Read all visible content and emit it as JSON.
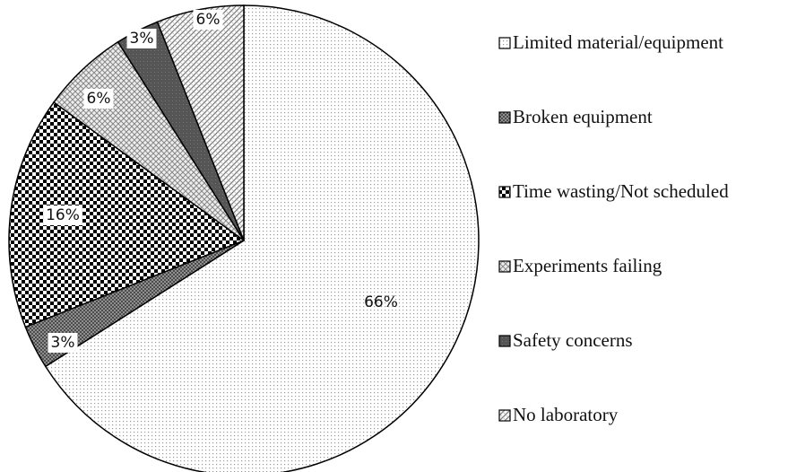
{
  "chart_data": {
    "type": "pie",
    "categories": [
      "Limited material/equipment",
      "Broken equipment",
      "Time wasting/Not scheduled",
      "Experiments failing",
      "Safety concerns",
      "No laboratory"
    ],
    "values": [
      66,
      3,
      16,
      6,
      3,
      6
    ],
    "value_labels": [
      "66%",
      "3%",
      "16%",
      "6%",
      "3%",
      "6%"
    ],
    "legend": "right"
  }
}
